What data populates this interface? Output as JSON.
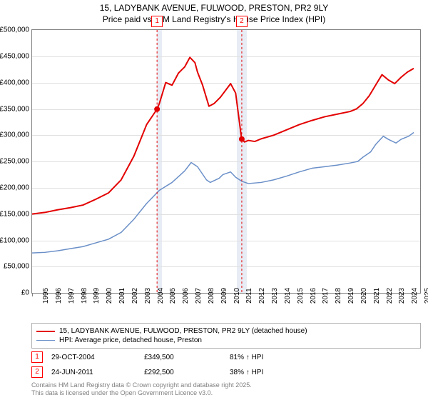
{
  "title_line1": "15, LADYBANK AVENUE, FULWOOD, PRESTON, PR2 9LY",
  "title_line2": "Price paid vs. HM Land Registry's House Price Index (HPI)",
  "chart": {
    "type": "line",
    "background_color": "#ffffff",
    "grid_color": "#e0e0e0",
    "border_color": "#808080",
    "shade_color": "#e8ecf4",
    "xlim": [
      1995,
      2025.5
    ],
    "ylim": [
      0,
      500000
    ],
    "x_ticks": [
      1995,
      1996,
      1997,
      1998,
      1999,
      2000,
      2001,
      2002,
      2003,
      2004,
      2005,
      2006,
      2007,
      2008,
      2009,
      2010,
      2011,
      2012,
      2013,
      2014,
      2015,
      2016,
      2017,
      2018,
      2019,
      2020,
      2021,
      2022,
      2023,
      2024,
      2025
    ],
    "y_ticks": [
      0,
      50000,
      100000,
      150000,
      200000,
      250000,
      300000,
      350000,
      400000,
      450000,
      500000
    ],
    "y_tick_labels": [
      "£0",
      "£50,000",
      "£100,000",
      "£150,000",
      "£200,000",
      "£250,000",
      "£300,000",
      "£350,000",
      "£400,000",
      "£450,000",
      "£500,000"
    ],
    "series": {
      "property": {
        "color": "#e30000",
        "line_width": 2,
        "label": "15, LADYBANK AVENUE, FULWOOD, PRESTON, PR2 9LY (detached house)",
        "points": [
          [
            1995,
            150000
          ],
          [
            1996,
            153000
          ],
          [
            1997,
            158000
          ],
          [
            1998,
            162000
          ],
          [
            1999,
            167000
          ],
          [
            2000,
            178000
          ],
          [
            2001,
            190000
          ],
          [
            2002,
            215000
          ],
          [
            2003,
            260000
          ],
          [
            2004,
            320000
          ],
          [
            2004.82,
            349500
          ],
          [
            2005,
            360000
          ],
          [
            2005.5,
            400000
          ],
          [
            2006,
            395000
          ],
          [
            2006.5,
            418000
          ],
          [
            2007,
            430000
          ],
          [
            2007.4,
            448000
          ],
          [
            2007.8,
            438000
          ],
          [
            2008,
            420000
          ],
          [
            2008.4,
            395000
          ],
          [
            2008.9,
            355000
          ],
          [
            2009.3,
            360000
          ],
          [
            2009.8,
            372000
          ],
          [
            2010.2,
            385000
          ],
          [
            2010.6,
            398000
          ],
          [
            2011,
            380000
          ],
          [
            2011.47,
            292500
          ],
          [
            2011.48,
            292500
          ],
          [
            2011.7,
            287000
          ],
          [
            2012,
            290000
          ],
          [
            2012.5,
            288000
          ],
          [
            2013,
            293000
          ],
          [
            2014,
            300000
          ],
          [
            2015,
            310000
          ],
          [
            2016,
            320000
          ],
          [
            2017,
            328000
          ],
          [
            2018,
            335000
          ],
          [
            2019,
            340000
          ],
          [
            2020,
            345000
          ],
          [
            2020.5,
            350000
          ],
          [
            2021,
            360000
          ],
          [
            2021.5,
            375000
          ],
          [
            2022,
            395000
          ],
          [
            2022.5,
            415000
          ],
          [
            2023,
            405000
          ],
          [
            2023.5,
            398000
          ],
          [
            2024,
            410000
          ],
          [
            2024.5,
            420000
          ],
          [
            2025,
            427000
          ]
        ]
      },
      "hpi": {
        "color": "#6a8fc8",
        "line_width": 1.5,
        "label": "HPI: Average price, detached house, Preston",
        "points": [
          [
            1995,
            76000
          ],
          [
            1996,
            77000
          ],
          [
            1997,
            80000
          ],
          [
            1998,
            84000
          ],
          [
            1999,
            88000
          ],
          [
            2000,
            95000
          ],
          [
            2001,
            102000
          ],
          [
            2002,
            115000
          ],
          [
            2003,
            140000
          ],
          [
            2004,
            170000
          ],
          [
            2005,
            195000
          ],
          [
            2006,
            210000
          ],
          [
            2007,
            232000
          ],
          [
            2007.5,
            248000
          ],
          [
            2008,
            240000
          ],
          [
            2008.7,
            215000
          ],
          [
            2009,
            210000
          ],
          [
            2009.7,
            218000
          ],
          [
            2010,
            225000
          ],
          [
            2010.6,
            230000
          ],
          [
            2011,
            220000
          ],
          [
            2011.5,
            212000
          ],
          [
            2012,
            208000
          ],
          [
            2013,
            210000
          ],
          [
            2014,
            215000
          ],
          [
            2015,
            222000
          ],
          [
            2016,
            230000
          ],
          [
            2017,
            237000
          ],
          [
            2018,
            240000
          ],
          [
            2019,
            243000
          ],
          [
            2020,
            247000
          ],
          [
            2020.6,
            250000
          ],
          [
            2021,
            258000
          ],
          [
            2021.6,
            268000
          ],
          [
            2022,
            282000
          ],
          [
            2022.6,
            298000
          ],
          [
            2023,
            292000
          ],
          [
            2023.6,
            285000
          ],
          [
            2024,
            292000
          ],
          [
            2024.6,
            298000
          ],
          [
            2025,
            305000
          ]
        ]
      }
    },
    "sale_markers": [
      {
        "label": "1",
        "x": 2004.82,
        "y": 349500
      },
      {
        "label": "2",
        "x": 2011.48,
        "y": 292500
      }
    ],
    "shaded_ranges": [
      [
        2004.82,
        2005.2
      ],
      [
        2011.1,
        2011.85
      ]
    ]
  },
  "sales_table": [
    {
      "idx": "1",
      "date": "29-OCT-2004",
      "price": "£349,500",
      "diff": "81% ↑ HPI"
    },
    {
      "idx": "2",
      "date": "24-JUN-2011",
      "price": "£292,500",
      "diff": "38% ↑ HPI"
    }
  ],
  "attribution_line1": "Contains HM Land Registry data © Crown copyright and database right 2025.",
  "attribution_line2": "This data is licensed under the Open Government Licence v3.0."
}
